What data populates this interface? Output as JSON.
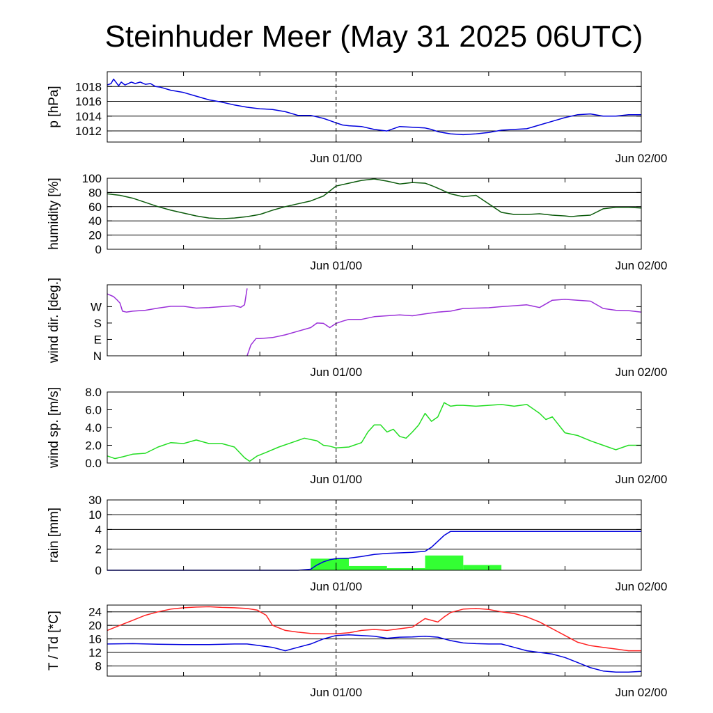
{
  "title": "Steinhuder Meer (May 31 2025 06UTC)",
  "time_axis": {
    "labels": [
      "Jun 01/00",
      "Jun 02/00"
    ],
    "start_hour": 0,
    "end_hour": 42
  },
  "chart_data": [
    {
      "type": "line",
      "ylabel": "p [hPa]",
      "ylim": [
        1010.5,
        1020
      ],
      "yticks": [
        1012,
        1014,
        1016,
        1018
      ],
      "ytick_labels": [
        "1012",
        "1014",
        "1016",
        "1018"
      ],
      "grid": true,
      "series": [
        {
          "color": "#0000dd",
          "x": [
            0,
            0.3,
            0.5,
            0.9,
            1.1,
            1.4,
            1.9,
            2.2,
            2.6,
            3,
            3.4,
            3.8,
            4.2,
            5,
            6,
            7,
            8,
            9,
            10,
            11,
            12,
            13,
            14,
            15,
            16,
            17,
            17.5,
            18,
            18.5,
            19,
            20,
            21,
            22,
            23,
            24,
            25,
            25.5,
            26,
            27,
            28,
            29,
            30,
            31,
            32,
            33,
            34,
            35,
            36,
            37,
            38,
            39,
            40,
            41,
            42
          ],
          "y": [
            1018.2,
            1018.4,
            1019.0,
            1018.1,
            1018.6,
            1018.2,
            1018.6,
            1018.4,
            1018.6,
            1018.3,
            1018.4,
            1018.0,
            1017.9,
            1017.5,
            1017.2,
            1016.7,
            1016.2,
            1015.9,
            1015.5,
            1015.2,
            1015.0,
            1014.9,
            1014.6,
            1014.1,
            1014.1,
            1013.7,
            1013.4,
            1013.1,
            1012.8,
            1012.7,
            1012.6,
            1012.2,
            1012.0,
            1012.6,
            1012.5,
            1012.4,
            1012.2,
            1011.9,
            1011.6,
            1011.5,
            1011.6,
            1011.8,
            1012.1,
            1012.2,
            1012.3,
            1012.8,
            1013.3,
            1013.8,
            1014.2,
            1014.3,
            1014.0,
            1014.0,
            1014.2,
            1014.2
          ]
        }
      ]
    },
    {
      "type": "line",
      "ylabel": "humidity [%]",
      "ylim": [
        0,
        100
      ],
      "yticks": [
        0,
        20,
        40,
        60,
        80,
        100
      ],
      "ytick_labels": [
        "0",
        "20",
        "40",
        "60",
        "80",
        "100"
      ],
      "grid": true,
      "series": [
        {
          "color": "#0b5a0b",
          "x": [
            0,
            1,
            2,
            3,
            4,
            5,
            6,
            7,
            8,
            9,
            10,
            11,
            12,
            13,
            14,
            15,
            16,
            17,
            18,
            19,
            20,
            21,
            22,
            23,
            24,
            25,
            25.6,
            26,
            27,
            28,
            29,
            30,
            31,
            32,
            33,
            34,
            35,
            36,
            36.5,
            37,
            38,
            39,
            40,
            41,
            42
          ],
          "y": [
            78,
            76,
            72,
            66,
            60,
            55,
            51,
            47,
            44,
            43,
            44,
            46,
            49,
            55,
            60,
            64,
            68,
            75,
            89,
            93,
            97,
            99,
            96,
            92,
            94,
            93,
            89,
            86,
            78,
            74,
            76,
            64,
            52,
            49,
            49,
            50,
            48,
            47,
            46,
            47,
            48,
            57,
            59,
            59,
            58
          ]
        }
      ]
    },
    {
      "type": "line",
      "ylabel": "wind dir. [deg.]",
      "ylim": [
        0,
        390
      ],
      "yticks": [
        0,
        90,
        180,
        270
      ],
      "ytick_labels": [
        "N",
        "E",
        "S",
        "W"
      ],
      "grid": false,
      "series": [
        {
          "color": "#9b30d9",
          "x": [
            0,
            0.5,
            0.8,
            1.0,
            1.2,
            1.5,
            2,
            3,
            4,
            5,
            6,
            7,
            8,
            9,
            10,
            10.5,
            10.8,
            11.0
          ],
          "y": [
            340,
            325,
            305,
            290,
            245,
            240,
            245,
            250,
            262,
            272,
            272,
            262,
            265,
            270,
            275,
            266,
            280,
            370
          ]
        },
        {
          "color": "#9b30d9",
          "x": [
            11.0,
            11.3,
            11.7,
            12,
            13,
            14,
            15,
            16,
            16.5,
            17,
            17.5,
            18,
            18.5,
            19,
            20,
            21,
            22,
            23,
            24,
            25,
            26,
            27,
            28,
            29,
            30,
            31,
            32,
            33,
            34,
            35,
            36,
            37,
            38,
            39,
            40,
            41,
            42
          ],
          "y": [
            0,
            60,
            95,
            95,
            100,
            115,
            135,
            155,
            180,
            178,
            155,
            178,
            190,
            200,
            200,
            215,
            220,
            225,
            220,
            230,
            240,
            245,
            260,
            262,
            264,
            270,
            275,
            280,
            265,
            305,
            310,
            305,
            300,
            260,
            250,
            248,
            240
          ]
        }
      ]
    },
    {
      "type": "line",
      "ylabel": "wind sp. [m/s]",
      "ylim": [
        0,
        8
      ],
      "yticks": [
        0,
        2,
        4,
        6,
        8
      ],
      "ytick_labels": [
        "0.0",
        "2.0",
        "4.0",
        "6.0",
        "8.0"
      ],
      "grid": false,
      "series": [
        {
          "color": "#22dd22",
          "x": [
            0,
            0.6,
            1.2,
            2,
            3,
            4,
            5,
            6,
            7,
            8,
            9,
            10,
            10.8,
            11.2,
            11.8,
            12.5,
            13.5,
            14.5,
            15.5,
            16.5,
            17.0,
            17.5,
            18,
            19,
            20,
            20.5,
            21,
            21.5,
            22,
            22.5,
            23,
            23.5,
            24,
            24.5,
            25,
            25.5,
            26,
            26.5,
            27,
            27.5,
            28,
            29,
            30,
            31,
            32,
            33,
            34,
            34.5,
            35,
            36,
            37,
            38,
            39,
            40,
            41,
            42
          ],
          "y": [
            0.8,
            0.5,
            0.7,
            1.0,
            1.1,
            1.8,
            2.3,
            2.2,
            2.6,
            2.2,
            2.2,
            1.8,
            0.6,
            0.2,
            0.8,
            1.2,
            1.8,
            2.3,
            2.8,
            2.5,
            2.0,
            1.9,
            1.7,
            1.8,
            2.3,
            3.5,
            4.3,
            4.3,
            3.5,
            3.8,
            3.0,
            2.8,
            3.5,
            4.3,
            5.6,
            4.7,
            5.2,
            6.8,
            6.4,
            6.5,
            6.5,
            6.4,
            6.5,
            6.6,
            6.4,
            6.6,
            5.6,
            4.9,
            5.2,
            3.4,
            3.1,
            2.5,
            2.0,
            1.5,
            2.0,
            2.0
          ]
        }
      ]
    },
    {
      "type": "bar+line",
      "ylabel": "rain [mm]",
      "ylim_scaled": [
        0,
        30
      ],
      "yticks": [
        0,
        2,
        4,
        10,
        30
      ],
      "ytick_labels": [
        "0",
        "2",
        "4",
        "10",
        "30"
      ],
      "grid": true,
      "bars": {
        "color": "#33ff33",
        "start": [
          16,
          19,
          22,
          25,
          28
        ],
        "end": [
          19,
          22,
          25,
          28,
          31
        ],
        "values": [
          1.1,
          0.4,
          0.2,
          1.4,
          0.5
        ]
      },
      "series": [
        {
          "color": "#0000dd",
          "x": [
            0,
            15,
            16,
            16.5,
            17,
            17.5,
            18,
            19,
            20,
            21,
            22,
            23,
            24,
            25,
            25.5,
            26,
            26.5,
            27,
            28,
            30,
            32,
            35,
            38,
            40,
            42
          ],
          "y": [
            0,
            0,
            0.1,
            0.5,
            0.8,
            1.0,
            1.1,
            1.15,
            1.3,
            1.5,
            1.6,
            1.65,
            1.7,
            1.8,
            2.2,
            2.8,
            3.4,
            3.8,
            3.8,
            3.8,
            3.8,
            3.8,
            3.8,
            3.8,
            3.8
          ]
        }
      ]
    },
    {
      "type": "line",
      "ylabel": "T / Td [*C]",
      "ylim": [
        5,
        26
      ],
      "yticks": [
        8,
        12,
        16,
        20,
        24
      ],
      "ytick_labels": [
        "8",
        "12",
        "16",
        "20",
        "24"
      ],
      "grid": true,
      "series": [
        {
          "color": "#ff2222",
          "x": [
            0,
            1,
            2,
            3,
            4,
            5,
            6,
            7,
            8,
            9,
            10,
            11,
            11.8,
            12.5,
            13,
            14,
            15,
            16,
            17,
            18,
            19,
            20,
            21,
            22,
            23,
            24,
            25,
            25.5,
            26,
            26.5,
            27,
            28,
            29,
            30,
            31,
            32,
            33,
            34,
            35,
            36,
            37,
            38,
            39,
            40,
            41,
            42
          ],
          "y": [
            18.5,
            20.0,
            21.5,
            23.0,
            24.0,
            24.8,
            25.2,
            25.4,
            25.5,
            25.3,
            25.2,
            25.0,
            24.5,
            23.0,
            20.0,
            18.5,
            18.0,
            17.6,
            17.5,
            17.5,
            17.8,
            18.5,
            18.8,
            18.5,
            19.0,
            19.5,
            22.0,
            21.5,
            21.0,
            22.5,
            23.8,
            24.8,
            25.0,
            24.7,
            24.0,
            23.5,
            22.5,
            21.0,
            19.0,
            17.0,
            15.0,
            14.0,
            13.5,
            13.0,
            12.5,
            12.5
          ]
        },
        {
          "color": "#0000dd",
          "x": [
            0,
            2,
            4,
            6,
            8,
            10,
            11,
            12,
            13,
            14,
            15,
            16,
            17,
            18,
            19,
            20,
            21,
            22,
            23,
            24,
            25,
            26,
            27,
            28,
            29,
            30,
            31,
            32,
            33,
            34,
            35,
            36,
            37,
            38,
            39,
            40,
            41,
            42
          ],
          "y": [
            14.5,
            14.6,
            14.4,
            14.3,
            14.3,
            14.5,
            14.5,
            14.0,
            13.5,
            12.5,
            13.5,
            14.5,
            16.0,
            17.0,
            17.2,
            17.0,
            16.8,
            16.2,
            16.5,
            16.6,
            16.8,
            16.5,
            15.5,
            14.8,
            14.6,
            14.5,
            14.5,
            13.5,
            12.5,
            12.0,
            11.5,
            10.5,
            9.0,
            7.5,
            6.5,
            6.2,
            6.2,
            6.4
          ]
        }
      ]
    }
  ]
}
